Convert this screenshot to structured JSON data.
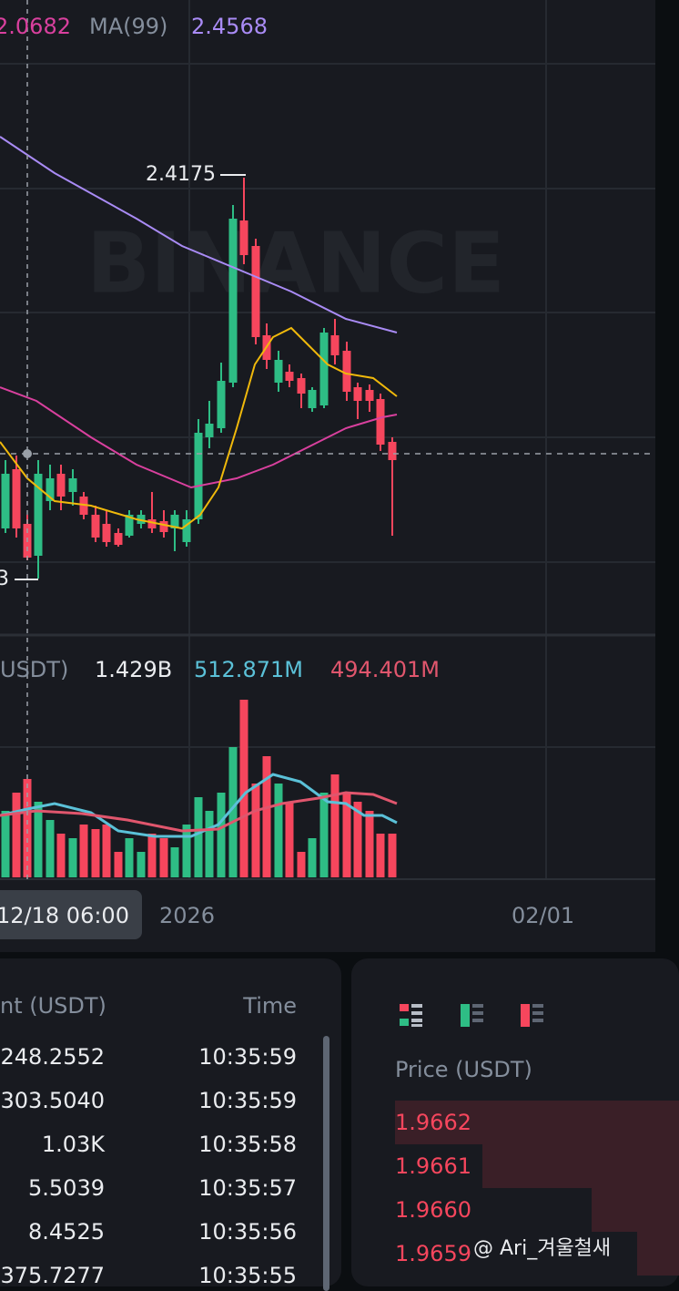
{
  "legend": {
    "ma_prev_value": "2.0682",
    "ma99_label": "MA(99)",
    "ma99_value": "2.4568"
  },
  "chart": {
    "logo": "BINANCE",
    "high_label": "2.4175",
    "low_label": "3"
  },
  "volume": {
    "label": "USDT)",
    "total": "1.429B",
    "ma_fast": "512.871M",
    "ma_slow": "494.401M"
  },
  "time_axis": [
    "12/18 06:00",
    "2026",
    "02/01"
  ],
  "trades": {
    "headers": [
      "nt (USDT)",
      "Time"
    ],
    "rows": [
      [
        "248.2552",
        "10:35:59"
      ],
      [
        "303.5040",
        "10:35:59"
      ],
      [
        "1.03K",
        "10:35:58"
      ],
      [
        "5.5039",
        "10:35:57"
      ],
      [
        "8.4525",
        "10:35:56"
      ],
      [
        "375.7277",
        "10:35:55"
      ]
    ]
  },
  "order_book": {
    "header": "Price (USDT)",
    "asks": [
      "1.9662",
      "1.9661",
      "1.9660",
      "1.9659"
    ]
  },
  "watermark": "@ Ari_겨울철새"
}
